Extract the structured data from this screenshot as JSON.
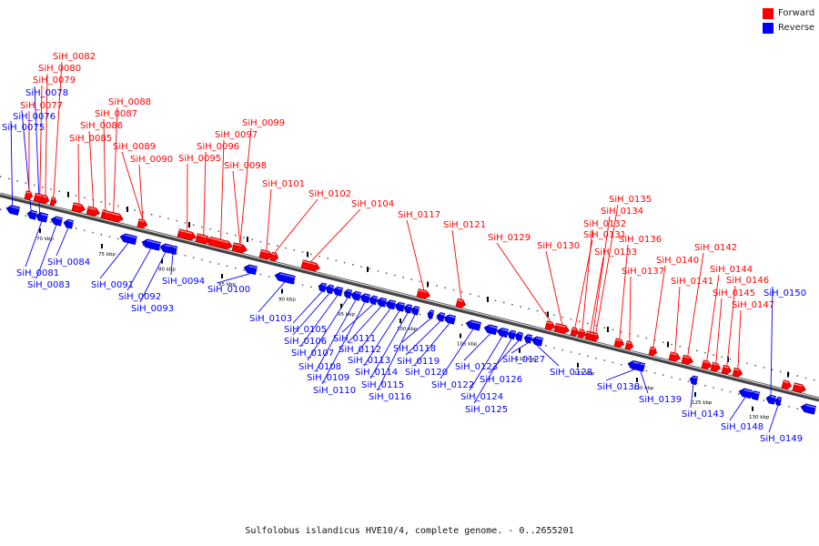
{
  "legend": {
    "forward": {
      "label": "Forward",
      "color": "#ff0000"
    },
    "reverse": {
      "label": "Reverse",
      "color": "#0000ff"
    }
  },
  "footer": "Sulfolobus islandicus HVE10/4, complete genome. - 0..2655201",
  "scale_labels": [
    "70 kbp",
    "75 kbp",
    "80 kbp",
    "85 kbp",
    "90 kbp",
    "95 kbp",
    "100 kbp",
    "105 kbp",
    "110 kbp",
    "115 kbp",
    "120 kbp",
    "125 kbp",
    "130 kbp"
  ],
  "genes": [
    {
      "id": "SiH_0075",
      "strand": "reverse"
    },
    {
      "id": "SiH_0076",
      "strand": "reverse"
    },
    {
      "id": "SiH_0077",
      "strand": "forward"
    },
    {
      "id": "SiH_0078",
      "strand": "reverse"
    },
    {
      "id": "SiH_0079",
      "strand": "forward"
    },
    {
      "id": "SiH_0080",
      "strand": "forward"
    },
    {
      "id": "SiH_0081",
      "strand": "reverse"
    },
    {
      "id": "SiH_0082",
      "strand": "forward"
    },
    {
      "id": "SiH_0083",
      "strand": "reverse"
    },
    {
      "id": "SiH_0084",
      "strand": "reverse"
    },
    {
      "id": "SiH_0085",
      "strand": "forward"
    },
    {
      "id": "SiH_0086",
      "strand": "forward"
    },
    {
      "id": "SiH_0087",
      "strand": "forward"
    },
    {
      "id": "SiH_0088",
      "strand": "forward"
    },
    {
      "id": "SiH_0089",
      "strand": "forward"
    },
    {
      "id": "SiH_0090",
      "strand": "forward"
    },
    {
      "id": "SiH_0091",
      "strand": "reverse"
    },
    {
      "id": "SiH_0092",
      "strand": "reverse"
    },
    {
      "id": "SiH_0093",
      "strand": "reverse"
    },
    {
      "id": "SiH_0094",
      "strand": "reverse"
    },
    {
      "id": "SiH_0095",
      "strand": "forward"
    },
    {
      "id": "SiH_0096",
      "strand": "forward"
    },
    {
      "id": "SiH_0097",
      "strand": "forward"
    },
    {
      "id": "SiH_0098",
      "strand": "forward"
    },
    {
      "id": "SiH_0099",
      "strand": "forward"
    },
    {
      "id": "SiH_0100",
      "strand": "reverse"
    },
    {
      "id": "SiH_0101",
      "strand": "forward"
    },
    {
      "id": "SiH_0102",
      "strand": "forward"
    },
    {
      "id": "SiH_0103",
      "strand": "reverse"
    },
    {
      "id": "SiH_0104",
      "strand": "forward"
    },
    {
      "id": "SiH_0105",
      "strand": "reverse"
    },
    {
      "id": "SiH_0106",
      "strand": "reverse"
    },
    {
      "id": "SiH_0107",
      "strand": "reverse"
    },
    {
      "id": "SiH_0108",
      "strand": "reverse"
    },
    {
      "id": "SiH_0109",
      "strand": "reverse"
    },
    {
      "id": "SiH_0110",
      "strand": "reverse"
    },
    {
      "id": "SiH_0111",
      "strand": "reverse"
    },
    {
      "id": "SiH_0112",
      "strand": "reverse"
    },
    {
      "id": "SiH_0113",
      "strand": "reverse"
    },
    {
      "id": "SiH_0114",
      "strand": "reverse"
    },
    {
      "id": "SiH_0115",
      "strand": "reverse"
    },
    {
      "id": "SiH_0116",
      "strand": "reverse"
    },
    {
      "id": "SiH_0117",
      "strand": "forward"
    },
    {
      "id": "SiH_0118",
      "strand": "reverse"
    },
    {
      "id": "SiH_0119",
      "strand": "reverse"
    },
    {
      "id": "SiH_0120",
      "strand": "reverse"
    },
    {
      "id": "SiH_0121",
      "strand": "forward"
    },
    {
      "id": "SiH_0122",
      "strand": "reverse"
    },
    {
      "id": "SiH_0123",
      "strand": "reverse"
    },
    {
      "id": "SiH_0124",
      "strand": "reverse"
    },
    {
      "id": "SiH_0125",
      "strand": "reverse"
    },
    {
      "id": "SiH_0126",
      "strand": "reverse"
    },
    {
      "id": "SiH_0127",
      "strand": "reverse"
    },
    {
      "id": "SiH_0128",
      "strand": "reverse"
    },
    {
      "id": "SiH_0129",
      "strand": "forward"
    },
    {
      "id": "SiH_0130",
      "strand": "forward"
    },
    {
      "id": "SiH_0131",
      "strand": "forward"
    },
    {
      "id": "SiH_0132",
      "strand": "forward"
    },
    {
      "id": "SiH_0133",
      "strand": "forward"
    },
    {
      "id": "SiH_0134",
      "strand": "forward"
    },
    {
      "id": "SiH_0135",
      "strand": "forward"
    },
    {
      "id": "SiH_0136",
      "strand": "forward"
    },
    {
      "id": "SiH_0137",
      "strand": "forward"
    },
    {
      "id": "SiH_0138",
      "strand": "reverse"
    },
    {
      "id": "SiH_0139",
      "strand": "reverse"
    },
    {
      "id": "SiH_0140",
      "strand": "forward"
    },
    {
      "id": "SiH_0141",
      "strand": "forward"
    },
    {
      "id": "SiH_0142",
      "strand": "forward"
    },
    {
      "id": "SiH_0143",
      "strand": "reverse"
    },
    {
      "id": "SiH_0144",
      "strand": "forward"
    },
    {
      "id": "SiH_0145",
      "strand": "forward"
    },
    {
      "id": "SiH_0146",
      "strand": "forward"
    },
    {
      "id": "SiH_0147",
      "strand": "forward"
    },
    {
      "id": "SiH_0148",
      "strand": "reverse"
    },
    {
      "id": "SiH_0149",
      "strand": "reverse"
    },
    {
      "id": "SiH_0150",
      "strand": "reverse"
    }
  ]
}
